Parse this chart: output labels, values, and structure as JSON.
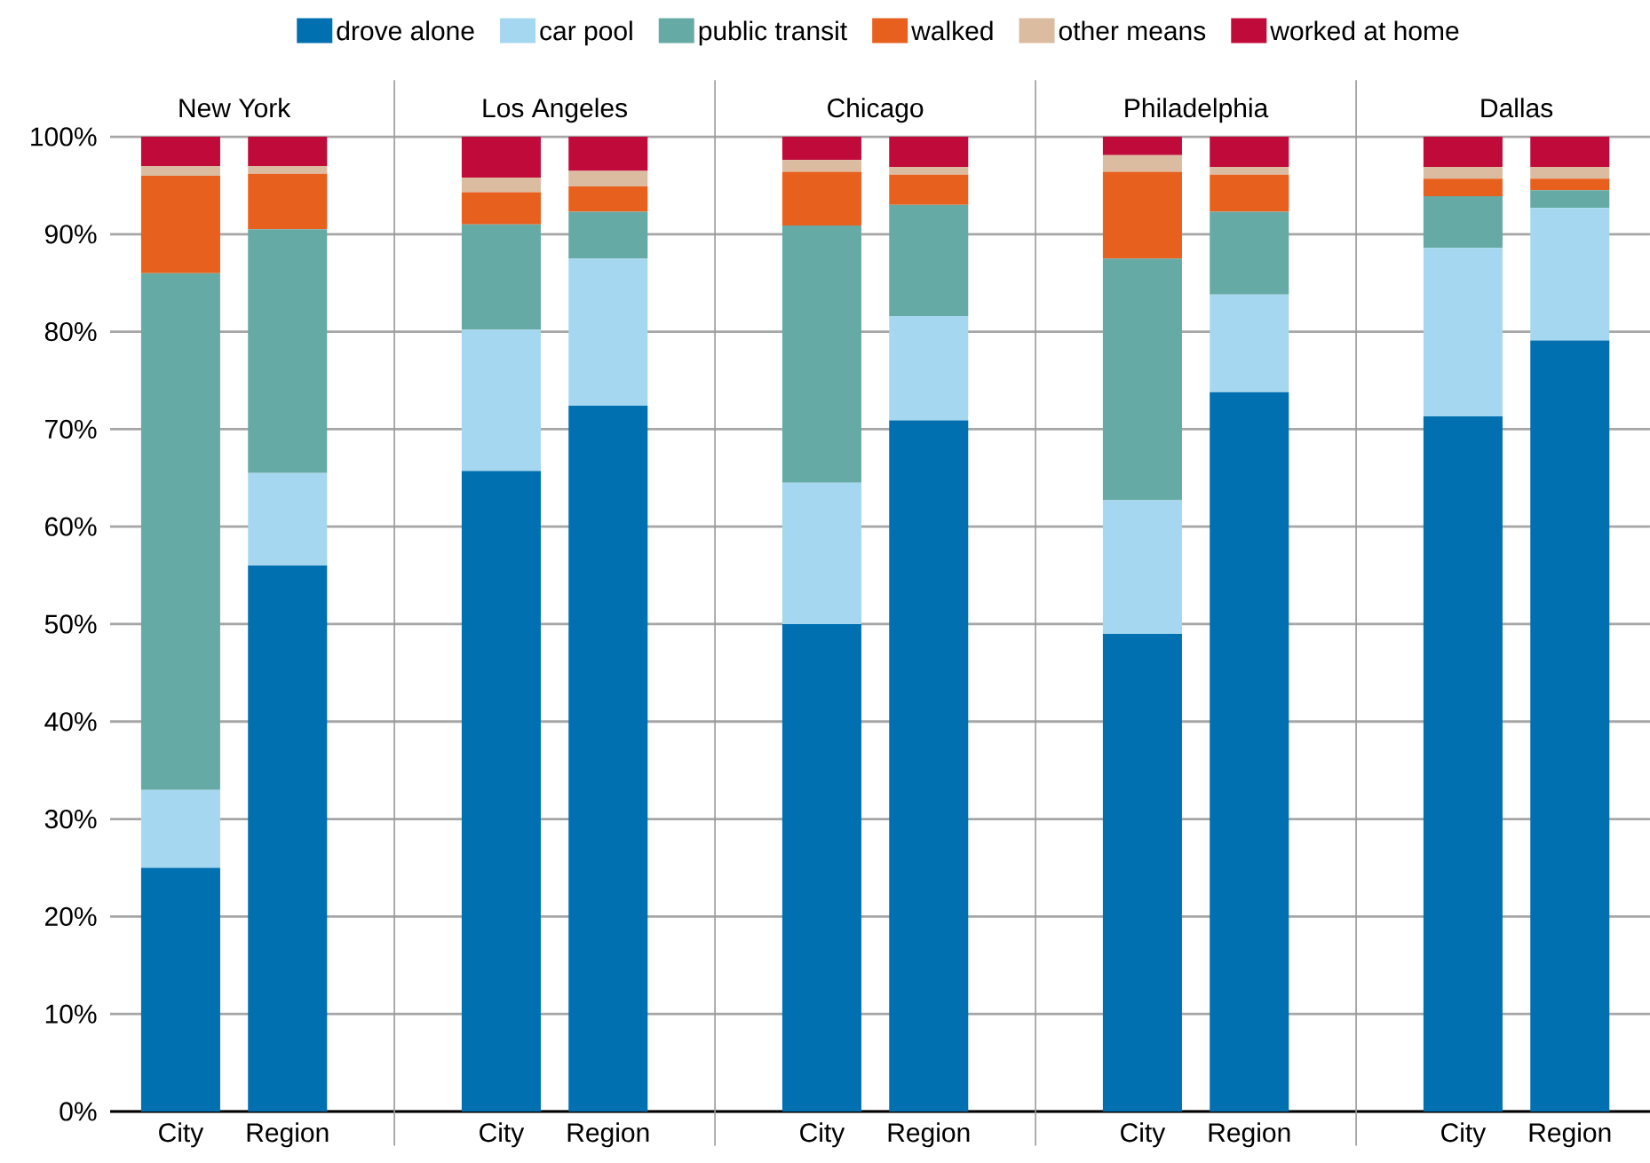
{
  "chart_data": {
    "type": "bar",
    "stacked": true,
    "categories": [
      "City",
      "Region",
      "City",
      "Region",
      "City",
      "Region",
      "City",
      "Region",
      "City",
      "Region"
    ],
    "series": [
      {
        "name": "drove alone",
        "color": "#0070b0",
        "values": [
          25,
          56,
          65.7,
          72.4,
          50,
          70.9,
          49,
          73.8,
          71.3,
          79.1
        ]
      },
      {
        "name": "car pool",
        "color": "#a5d8f0",
        "values": [
          8,
          9.5,
          14.5,
          15.1,
          14.5,
          10.7,
          13.7,
          10,
          17.3,
          13.6
        ]
      },
      {
        "name": "public transit",
        "color": "#66aaa5",
        "values": [
          53,
          25,
          10.8,
          4.8,
          26.4,
          11.4,
          24.8,
          8.5,
          5.3,
          1.8
        ]
      },
      {
        "name": "walked",
        "color": "#e8601e",
        "values": [
          10,
          5.7,
          3.3,
          2.6,
          5.5,
          3.1,
          8.9,
          3.8,
          1.8,
          1.2
        ]
      },
      {
        "name": "other means",
        "color": "#dcbca0",
        "values": [
          1,
          0.8,
          1.5,
          1.6,
          1.2,
          0.8,
          1.7,
          0.8,
          1.2,
          1.2
        ]
      },
      {
        "name": "worked at home",
        "color": "#bf0a3a",
        "values": [
          3,
          3,
          4.2,
          3.5,
          2.4,
          3.1,
          1.9,
          3.1,
          3.1,
          3.1
        ]
      }
    ],
    "annotations": [
      "New York",
      "Los Angeles",
      "Chicago",
      "Philadelphia",
      "Dallas"
    ],
    "ylim": [
      0,
      100
    ],
    "yticks": [
      {
        "value": 0,
        "label": "0%"
      },
      {
        "value": 10,
        "label": "10%"
      },
      {
        "value": 20,
        "label": "20%"
      },
      {
        "value": 30,
        "label": "30%"
      },
      {
        "value": 40,
        "label": "40%"
      },
      {
        "value": 50,
        "label": "50%"
      },
      {
        "value": 60,
        "label": "60%"
      },
      {
        "value": 70,
        "label": "70%"
      },
      {
        "value": 80,
        "label": "80%"
      },
      {
        "value": 90,
        "label": "90%"
      },
      {
        "value": 100,
        "label": "100%"
      }
    ],
    "grid": "y",
    "legend": "top"
  }
}
